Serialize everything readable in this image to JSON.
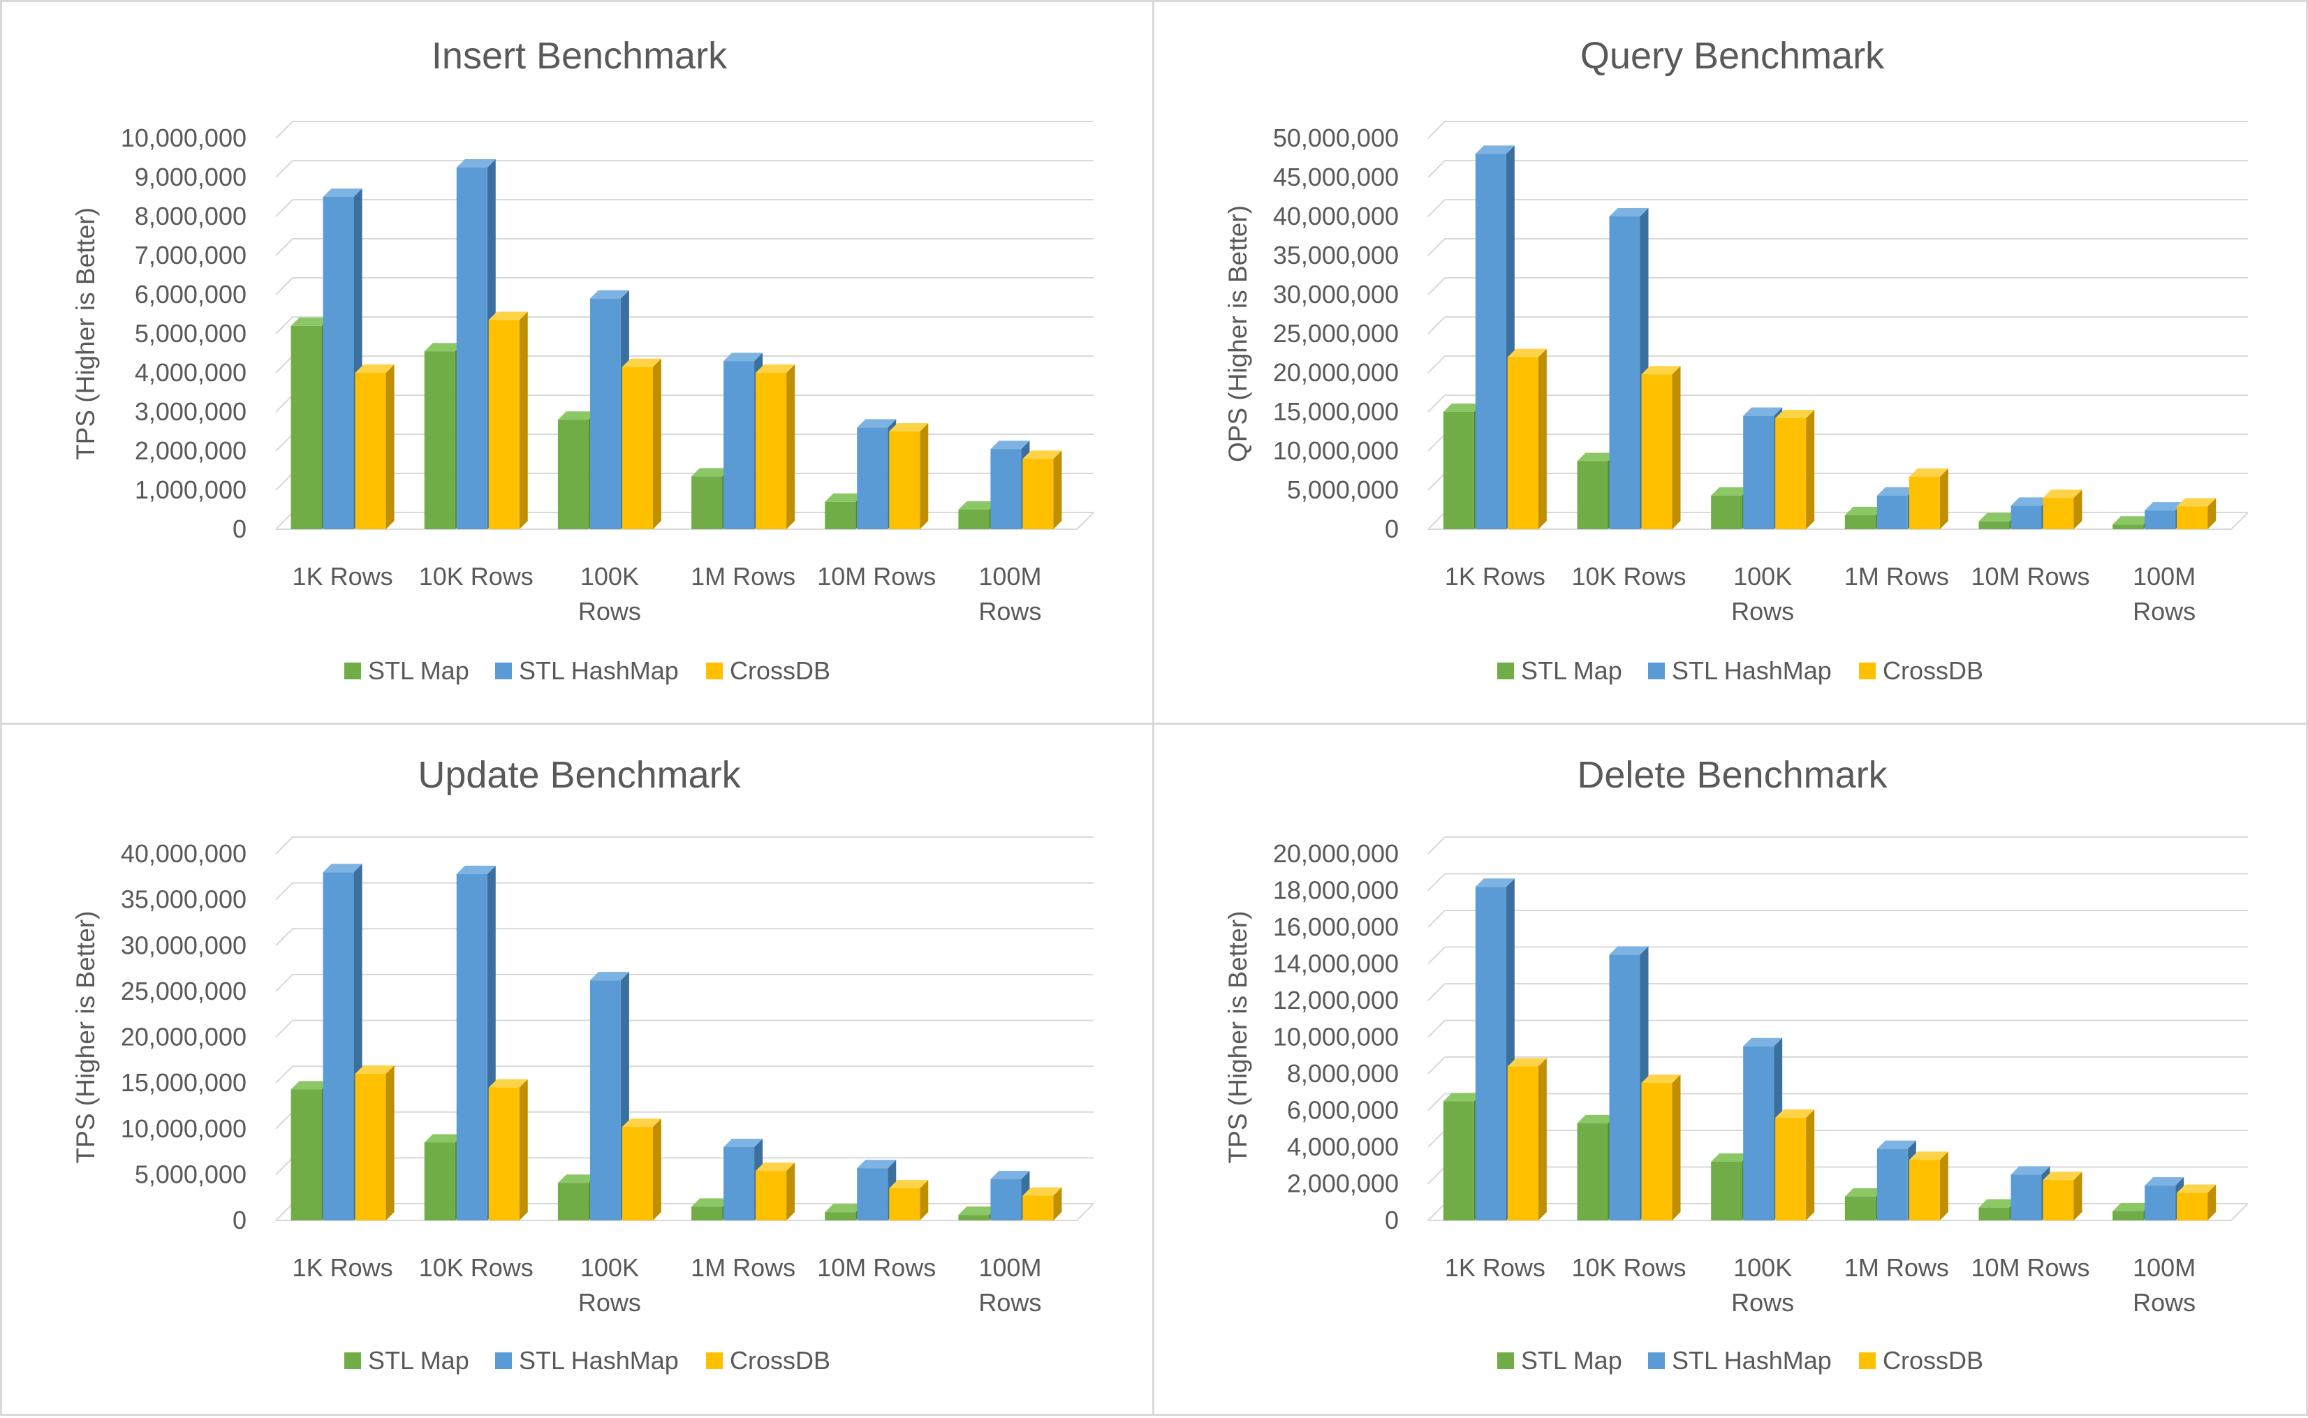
{
  "colors": {
    "STL Map": [
      "#70ad47",
      "#4e8a31",
      "#8cc765"
    ],
    "STL HashMap": [
      "#5b9bd5",
      "#3a6f9e",
      "#7db3e3"
    ],
    "CrossDB": [
      "#ffc000",
      "#bf8f00",
      "#ffd347"
    ],
    "grid": "#d9d9d9",
    "text": "#595959"
  },
  "chart_data": [
    {
      "type": "bar",
      "title": "Insert Benchmark",
      "ylabel": "TPS (Higher is Better)",
      "xlabel": "",
      "categories": [
        [
          "1K Rows"
        ],
        [
          "10K Rows"
        ],
        [
          "100K",
          "Rows"
        ],
        [
          "1M Rows"
        ],
        [
          "10M Rows"
        ],
        [
          "100M",
          "Rows"
        ]
      ],
      "ylim": [
        0,
        10000000
      ],
      "yticks": [
        0,
        1000000,
        2000000,
        3000000,
        4000000,
        5000000,
        6000000,
        7000000,
        8000000,
        9000000,
        10000000
      ],
      "ytick_labels": [
        "0",
        "1,000,000",
        "2,000,000",
        "3,000,000",
        "4,000,000",
        "5,000,000",
        "6,000,000",
        "7,000,000",
        "8,000,000",
        "9,000,000",
        "10,000,000"
      ],
      "legend_position": "bottom",
      "grid": true,
      "series": [
        {
          "name": "STL Map",
          "values": [
            5200000,
            4550000,
            2800000,
            1350000,
            700000,
            500000
          ]
        },
        {
          "name": "STL HashMap",
          "values": [
            8500000,
            9250000,
            5900000,
            4300000,
            2600000,
            2050000
          ]
        },
        {
          "name": "CrossDB",
          "values": [
            4000000,
            5350000,
            4150000,
            4000000,
            2500000,
            1800000
          ]
        }
      ]
    },
    {
      "type": "bar",
      "title": "Query Benchmark",
      "ylabel": "QPS (Higher is Better)",
      "xlabel": "",
      "categories": [
        [
          "1K Rows"
        ],
        [
          "10K Rows"
        ],
        [
          "100K",
          "Rows"
        ],
        [
          "1M Rows"
        ],
        [
          "10M Rows"
        ],
        [
          "100M",
          "Rows"
        ]
      ],
      "ylim": [
        0,
        50000000
      ],
      "yticks": [
        0,
        5000000,
        10000000,
        15000000,
        20000000,
        25000000,
        30000000,
        35000000,
        40000000,
        45000000,
        50000000
      ],
      "ytick_labels": [
        "0",
        "5,000,000",
        "10,000,000",
        "15,000,000",
        "20,000,000",
        "25,000,000",
        "30,000,000",
        "35,000,000",
        "40,000,000",
        "45,000,000",
        "50,000,000"
      ],
      "legend_position": "bottom",
      "grid": true,
      "series": [
        {
          "name": "STL Map",
          "values": [
            15000000,
            8700000,
            4300000,
            1800000,
            1000000,
            600000
          ]
        },
        {
          "name": "STL HashMap",
          "values": [
            48000000,
            40000000,
            14500000,
            4300000,
            3000000,
            2400000
          ]
        },
        {
          "name": "CrossDB",
          "values": [
            22000000,
            19800000,
            14200000,
            6700000,
            4000000,
            2900000
          ]
        }
      ]
    },
    {
      "type": "bar",
      "title": "Update Benchmark",
      "ylabel": "TPS (Higher is Better)",
      "xlabel": "",
      "categories": [
        [
          "1K Rows"
        ],
        [
          "10K Rows"
        ],
        [
          "100K",
          "Rows"
        ],
        [
          "1M Rows"
        ],
        [
          "10M Rows"
        ],
        [
          "100M",
          "Rows"
        ]
      ],
      "ylim": [
        0,
        40000000
      ],
      "yticks": [
        0,
        5000000,
        10000000,
        15000000,
        20000000,
        25000000,
        30000000,
        35000000,
        40000000
      ],
      "ytick_labels": [
        "0",
        "5,000,000",
        "10,000,000",
        "15,000,000",
        "20,000,000",
        "25,000,000",
        "30,000,000",
        "35,000,000",
        "40,000,000"
      ],
      "legend_position": "bottom",
      "grid": true,
      "series": [
        {
          "name": "STL Map",
          "values": [
            14300000,
            8500000,
            4100000,
            1500000,
            900000,
            600000
          ]
        },
        {
          "name": "STL HashMap",
          "values": [
            38000000,
            37800000,
            26200000,
            8000000,
            5700000,
            4500000
          ]
        },
        {
          "name": "CrossDB",
          "values": [
            16000000,
            14500000,
            10200000,
            5400000,
            3500000,
            2700000
          ]
        }
      ]
    },
    {
      "type": "bar",
      "title": "Delete Benchmark",
      "ylabel": "TPS (Higher is Better)",
      "xlabel": "",
      "categories": [
        [
          "1K Rows"
        ],
        [
          "10K Rows"
        ],
        [
          "100K",
          "Rows"
        ],
        [
          "1M Rows"
        ],
        [
          "10M Rows"
        ],
        [
          "100M",
          "Rows"
        ]
      ],
      "ylim": [
        0,
        20000000
      ],
      "yticks": [
        0,
        2000000,
        4000000,
        6000000,
        8000000,
        10000000,
        12000000,
        14000000,
        16000000,
        18000000,
        20000000
      ],
      "ytick_labels": [
        "0",
        "2,000,000",
        "4,000,000",
        "6,000,000",
        "8,000,000",
        "10,000,000",
        "12,000,000",
        "14,000,000",
        "16,000,000",
        "18,000,000",
        "20,000,000"
      ],
      "legend_position": "bottom",
      "grid": true,
      "series": [
        {
          "name": "STL Map",
          "values": [
            6500000,
            5300000,
            3200000,
            1300000,
            700000,
            500000
          ]
        },
        {
          "name": "STL HashMap",
          "values": [
            18200000,
            14500000,
            9500000,
            3900000,
            2500000,
            1900000
          ]
        },
        {
          "name": "CrossDB",
          "values": [
            8400000,
            7500000,
            5600000,
            3300000,
            2200000,
            1500000
          ]
        }
      ]
    }
  ]
}
